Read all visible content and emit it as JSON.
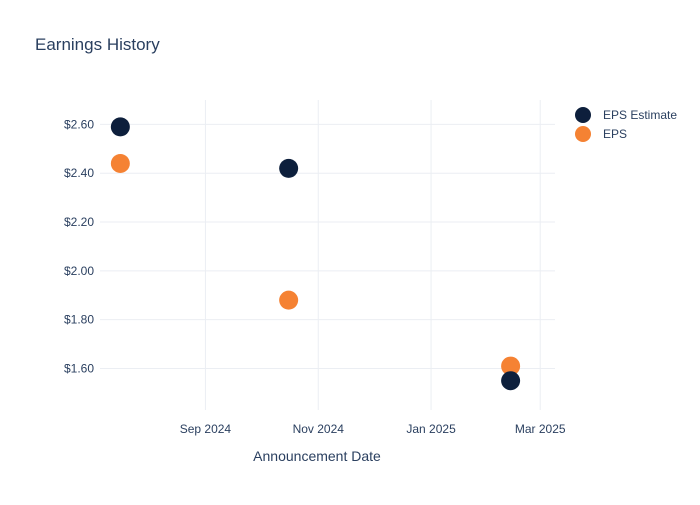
{
  "chart_data": {
    "type": "scatter",
    "title": "Earnings History",
    "xlabel": "Announcement Date",
    "ylabel": "",
    "x_ticks": [
      "Sep 2024",
      "Nov 2024",
      "Jan 2025",
      "Mar 2025"
    ],
    "y_ticks": [
      "$1.60",
      "$1.80",
      "$2.00",
      "$2.20",
      "$2.40",
      "$2.60"
    ],
    "ylim": [
      1.43,
      2.7
    ],
    "xlim": [
      "2024-07-06",
      "2025-03-09"
    ],
    "grid": true,
    "legend_position": "top-right",
    "series": [
      {
        "name": "EPS Estimate",
        "color": "#0d1f3c",
        "points": [
          {
            "x": "2024-07-17",
            "y": 2.59
          },
          {
            "x": "2024-10-16",
            "y": 2.42
          },
          {
            "x": "2025-02-13",
            "y": 1.55
          }
        ]
      },
      {
        "name": "EPS",
        "color": "#f58233",
        "points": [
          {
            "x": "2024-07-17",
            "y": 2.44
          },
          {
            "x": "2024-10-16",
            "y": 1.88
          },
          {
            "x": "2025-02-13",
            "y": 1.61
          }
        ]
      }
    ]
  }
}
